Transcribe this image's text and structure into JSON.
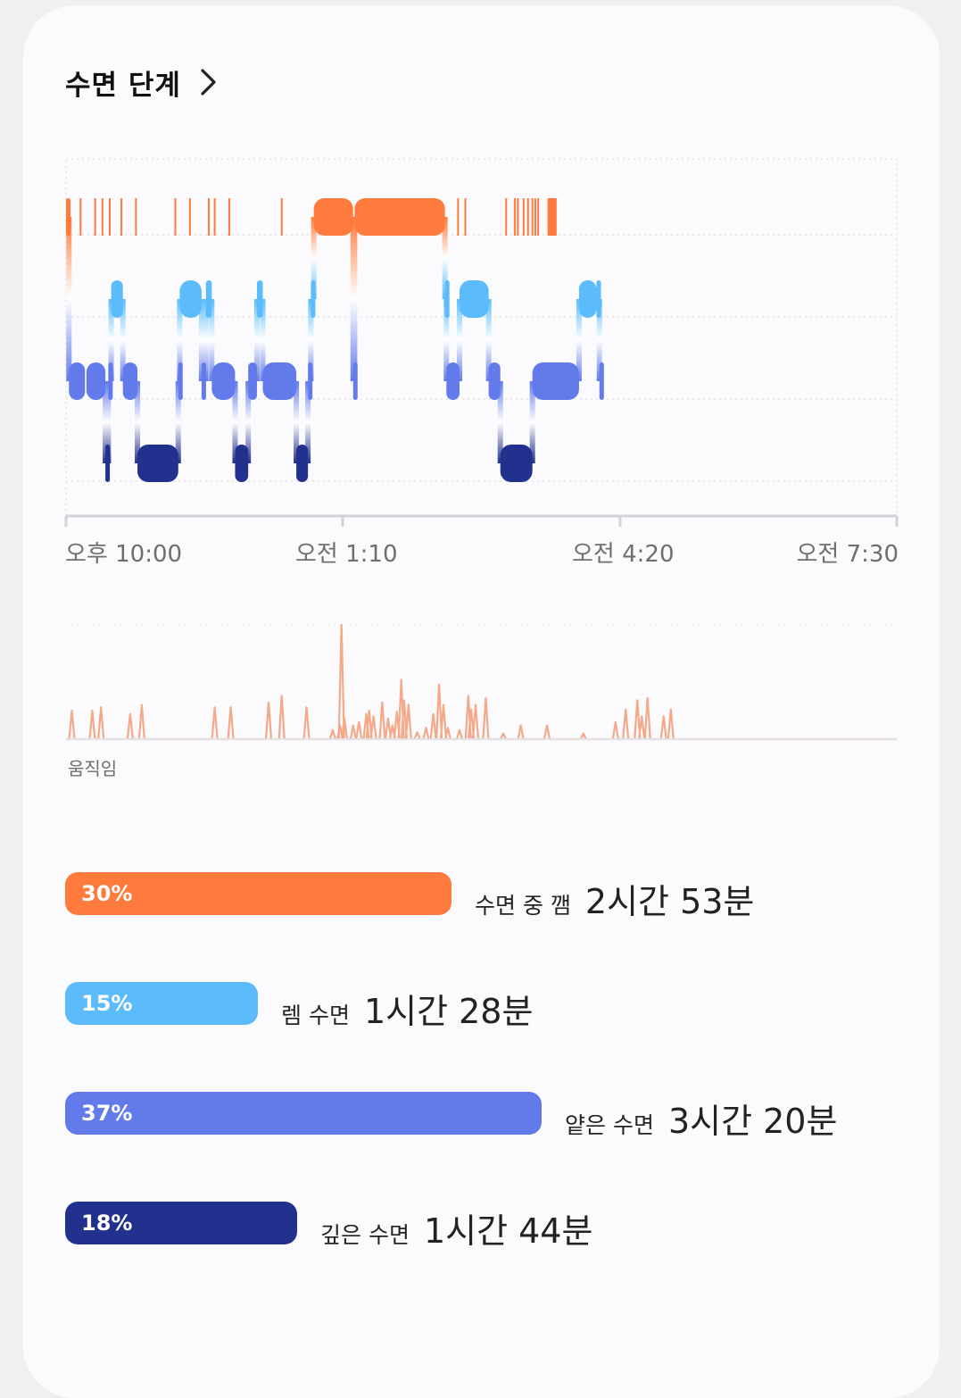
{
  "header": {
    "title": "수면 단계",
    "chevron_icon": "chevron-right-icon"
  },
  "chart": {
    "x_axis_labels": [
      "오후 10:00",
      "오전 1:10",
      "오전 4:20",
      "오전 7:30"
    ],
    "movement_label": "움직임"
  },
  "colors": {
    "awake": "#ff7b3d",
    "rem": "#5cbcfb",
    "light": "#637bea",
    "deep": "#22308e",
    "movement": "#f4a98a",
    "grid": "#e3e3e8",
    "axis": "#d4d4d8"
  },
  "chart_data": {
    "type": "timeline",
    "x_start": "22:00",
    "x_end": "07:30",
    "stage_levels": [
      "awake",
      "rem",
      "light",
      "deep"
    ],
    "segments": [
      {
        "stage": "awake",
        "start": "22:00",
        "end": "22:02"
      },
      {
        "stage": "light",
        "start": "22:02",
        "end": "22:13"
      },
      {
        "stage": "light",
        "start": "22:14",
        "end": "22:27"
      },
      {
        "stage": "deep",
        "start": "22:27",
        "end": "22:29"
      },
      {
        "stage": "light",
        "start": "22:29",
        "end": "22:31"
      },
      {
        "stage": "rem",
        "start": "22:31",
        "end": "22:39"
      },
      {
        "stage": "light",
        "start": "22:39",
        "end": "22:49"
      },
      {
        "stage": "deep",
        "start": "22:49",
        "end": "23:17"
      },
      {
        "stage": "light",
        "start": "23:17",
        "end": "23:18"
      },
      {
        "stage": "rem",
        "start": "23:18",
        "end": "23:33"
      },
      {
        "stage": "light",
        "start": "23:33",
        "end": "23:36"
      },
      {
        "stage": "rem",
        "start": "23:36",
        "end": "23:40"
      },
      {
        "stage": "light",
        "start": "23:40",
        "end": "23:56"
      },
      {
        "stage": "deep",
        "start": "23:56",
        "end": "00:05"
      },
      {
        "stage": "light",
        "start": "00:05",
        "end": "00:11"
      },
      {
        "stage": "rem",
        "start": "00:11",
        "end": "00:15"
      },
      {
        "stage": "light",
        "start": "00:15",
        "end": "00:38"
      },
      {
        "stage": "deep",
        "start": "00:38",
        "end": "00:46"
      },
      {
        "stage": "light",
        "start": "00:46",
        "end": "00:48"
      },
      {
        "stage": "rem",
        "start": "00:48",
        "end": "00:50"
      },
      {
        "stage": "awake",
        "start": "00:50",
        "end": "01:17"
      },
      {
        "stage": "light",
        "start": "01:17",
        "end": "01:18"
      },
      {
        "stage": "awake",
        "start": "01:18",
        "end": "02:20"
      },
      {
        "stage": "rem",
        "start": "02:20",
        "end": "02:21"
      },
      {
        "stage": "light",
        "start": "02:21",
        "end": "02:30"
      },
      {
        "stage": "rem",
        "start": "02:30",
        "end": "02:50"
      },
      {
        "stage": "light",
        "start": "02:50",
        "end": "02:58"
      },
      {
        "stage": "deep",
        "start": "02:58",
        "end": "03:20"
      },
      {
        "stage": "light",
        "start": "03:20",
        "end": "03:52"
      },
      {
        "stage": "rem",
        "start": "03:52",
        "end": "04:04"
      },
      {
        "stage": "rem",
        "start": "04:04",
        "end": "04:06"
      },
      {
        "stage": "light",
        "start": "04:06",
        "end": "04:08"
      }
    ],
    "brief_awakenings": [
      "22:10",
      "22:20",
      "22:25",
      "22:30",
      "22:38",
      "22:48",
      "23:15",
      "23:25",
      "23:38",
      "23:42",
      "23:52",
      "00:28",
      "02:29",
      "02:34",
      "03:02",
      "03:08",
      "03:10",
      "03:14",
      "03:17",
      "03:20",
      "03:22",
      "03:24",
      "03:31",
      "03:32",
      "03:33",
      "03:34",
      "03:35",
      "03:36"
    ],
    "movement_peaks": [
      {
        "t": "22:04",
        "v": 0.25
      },
      {
        "t": "22:18",
        "v": 0.25
      },
      {
        "t": "22:24",
        "v": 0.28
      },
      {
        "t": "22:44",
        "v": 0.22
      },
      {
        "t": "22:52",
        "v": 0.3
      },
      {
        "t": "23:42",
        "v": 0.28
      },
      {
        "t": "23:53",
        "v": 0.28
      },
      {
        "t": "00:19",
        "v": 0.32
      },
      {
        "t": "00:28",
        "v": 0.38
      },
      {
        "t": "00:45",
        "v": 0.28
      },
      {
        "t": "01:03",
        "v": 0.08
      },
      {
        "t": "01:08",
        "v": 0.12
      },
      {
        "t": "01:09",
        "v": 1.0
      },
      {
        "t": "01:11",
        "v": 0.18
      },
      {
        "t": "01:17",
        "v": 0.12
      },
      {
        "t": "01:21",
        "v": 0.15
      },
      {
        "t": "01:26",
        "v": 0.22
      },
      {
        "t": "01:28",
        "v": 0.25
      },
      {
        "t": "01:31",
        "v": 0.2
      },
      {
        "t": "01:37",
        "v": 0.32
      },
      {
        "t": "01:41",
        "v": 0.18
      },
      {
        "t": "01:44",
        "v": 0.12
      },
      {
        "t": "01:47",
        "v": 0.24
      },
      {
        "t": "01:50",
        "v": 0.52
      },
      {
        "t": "01:52",
        "v": 0.34
      },
      {
        "t": "01:55",
        "v": 0.3
      },
      {
        "t": "02:01",
        "v": 0.06
      },
      {
        "t": "02:07",
        "v": 0.1
      },
      {
        "t": "02:12",
        "v": 0.22
      },
      {
        "t": "02:16",
        "v": 0.48
      },
      {
        "t": "02:19",
        "v": 0.3
      },
      {
        "t": "02:22",
        "v": 0.1
      },
      {
        "t": "02:30",
        "v": 0.08
      },
      {
        "t": "02:36",
        "v": 0.38
      },
      {
        "t": "02:38",
        "v": 0.26
      },
      {
        "t": "02:41",
        "v": 0.3
      },
      {
        "t": "02:48",
        "v": 0.36
      },
      {
        "t": "03:00",
        "v": 0.05
      },
      {
        "t": "03:12",
        "v": 0.12
      },
      {
        "t": "03:30",
        "v": 0.12
      },
      {
        "t": "03:55",
        "v": 0.05
      },
      {
        "t": "04:17",
        "v": 0.15
      },
      {
        "t": "04:24",
        "v": 0.26
      },
      {
        "t": "04:32",
        "v": 0.34
      },
      {
        "t": "04:35",
        "v": 0.2
      },
      {
        "t": "04:39",
        "v": 0.36
      },
      {
        "t": "04:50",
        "v": 0.2
      },
      {
        "t": "04:55",
        "v": 0.26
      }
    ]
  },
  "stats": [
    {
      "key": "awake",
      "pct": "30%",
      "label": "수면 중 깸",
      "duration": "2시간 53분",
      "color": "#ff7b3d",
      "fraction": 0.3
    },
    {
      "key": "rem",
      "pct": "15%",
      "label": "렘 수면",
      "duration": "1시간 28분",
      "color": "#5cbcfb",
      "fraction": 0.15
    },
    {
      "key": "light",
      "pct": "37%",
      "label": "얕은 수면",
      "duration": "3시간 20분",
      "color": "#637bea",
      "fraction": 0.37
    },
    {
      "key": "deep",
      "pct": "18%",
      "label": "깊은 수면",
      "duration": "1시간 44분",
      "color": "#22308e",
      "fraction": 0.18
    }
  ]
}
